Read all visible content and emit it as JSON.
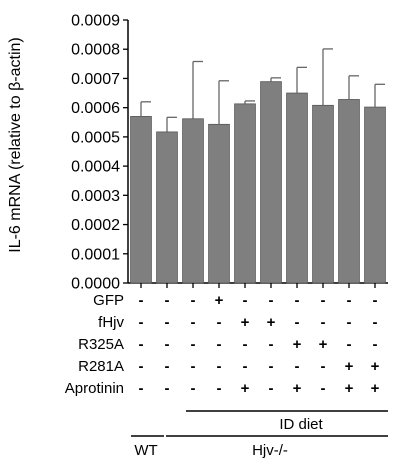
{
  "chart_data": {
    "type": "bar",
    "ylabel": "IL-6 mRNA (relative to β-actin)",
    "ylim": [
      0,
      0.0009
    ],
    "y_ticks": [
      "0.0000",
      "0.0001",
      "0.0002",
      "0.0003",
      "0.0004",
      "0.0005",
      "0.0006",
      "0.0007",
      "0.0008",
      "0.0009"
    ],
    "bar_color": "#7f7f7f",
    "grid": false,
    "values": [
      0.00057,
      0.000517,
      0.000562,
      0.000543,
      0.000613,
      0.000689,
      0.00065,
      0.000608,
      0.000628,
      0.000602
    ],
    "errors": [
      5e-05,
      5e-05,
      0.000196,
      0.000149,
      1e-05,
      1.3e-05,
      8.8e-05,
      0.000193,
      8.1e-05,
      7.8e-05
    ],
    "conditions": [
      {
        "label": "GFP",
        "signs": [
          "-",
          "-",
          "-",
          "+",
          "-",
          "-",
          "-",
          "-",
          "-",
          "-"
        ]
      },
      {
        "label": "fHjv",
        "signs": [
          "-",
          "-",
          "-",
          "-",
          "+",
          "+",
          "-",
          "-",
          "-",
          "-"
        ]
      },
      {
        "label": "R325A",
        "signs": [
          "-",
          "-",
          "-",
          "-",
          "-",
          "-",
          "+",
          "+",
          "-",
          "-"
        ]
      },
      {
        "label": "R281A",
        "signs": [
          "-",
          "-",
          "-",
          "-",
          "-",
          "-",
          "-",
          "-",
          "+",
          "+"
        ]
      },
      {
        "label": "Aprotinin",
        "signs": [
          "-",
          "-",
          "-",
          "-",
          "+",
          "-",
          "+",
          "-",
          "+",
          "+"
        ]
      }
    ],
    "groups": {
      "id_diet": "ID diet",
      "wt": "WT",
      "hjv": "Hjv-/-"
    }
  }
}
